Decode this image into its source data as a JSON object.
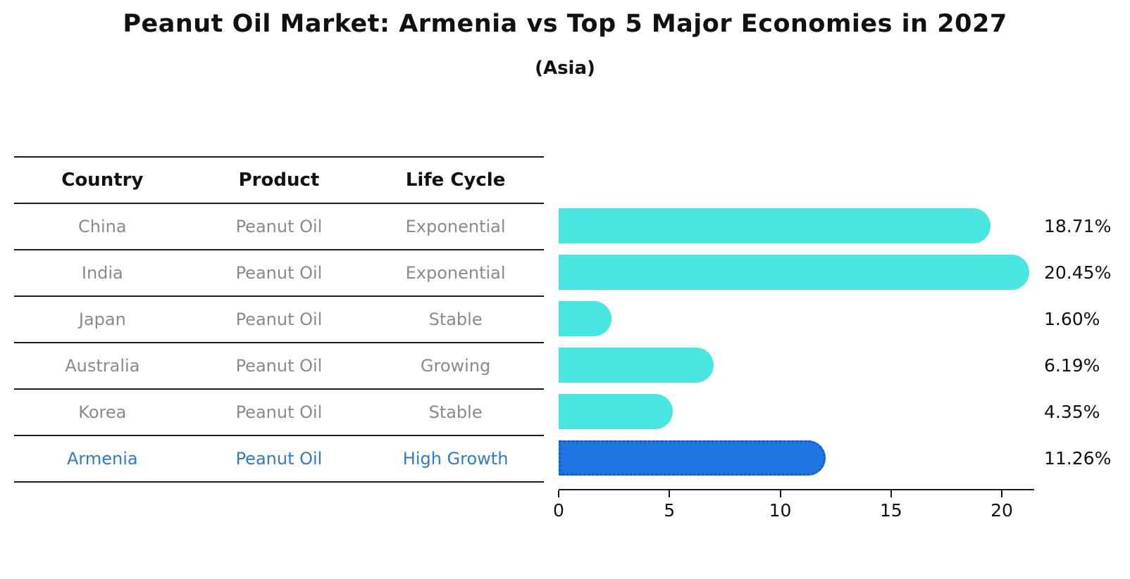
{
  "title": "Peanut Oil Market: Armenia vs Top 5 Major Economies in 2027",
  "subtitle": "(Asia)",
  "colors": {
    "bar_default": "#48e6e0",
    "bar_highlight": "#1e76e2",
    "bar_highlight_edge": "#0d5bc8",
    "highlight_text": "#2d7ad1",
    "row_text": "#8a8a8a",
    "line_color": "#1a1a1a"
  },
  "table": {
    "headers": [
      "Country",
      "Product",
      "Life Cycle"
    ],
    "rows": [
      {
        "country": "China",
        "product": "Peanut Oil",
        "life_cycle": "Exponential",
        "highlight": false
      },
      {
        "country": "India",
        "product": "Peanut Oil",
        "life_cycle": "Exponential",
        "highlight": false
      },
      {
        "country": "Japan",
        "product": "Peanut Oil",
        "life_cycle": "Stable",
        "highlight": false
      },
      {
        "country": "Australia",
        "product": "Peanut Oil",
        "life_cycle": "Growing",
        "highlight": false
      },
      {
        "country": "Korea",
        "product": "Peanut Oil",
        "life_cycle": "Stable",
        "highlight": false
      },
      {
        "country": "Armenia",
        "product": "Peanut Oil",
        "life_cycle": "High Growth",
        "highlight": true
      }
    ]
  },
  "chart_data": {
    "type": "bar",
    "orientation": "horizontal",
    "title": "Peanut Oil Market: Armenia vs Top 5 Major Economies in 2027",
    "subtitle": "(Asia)",
    "categories": [
      "China",
      "India",
      "Japan",
      "Australia",
      "Korea",
      "Armenia"
    ],
    "values": [
      18.71,
      20.45,
      1.6,
      6.19,
      4.35,
      11.26
    ],
    "value_labels": [
      "18.71%",
      "20.45%",
      "1.60%",
      "6.19%",
      "4.35%",
      "11.26%"
    ],
    "highlight_category": "Armenia",
    "xlabel": "",
    "ylabel": "",
    "x_ticks": [
      0,
      5,
      10,
      15,
      20
    ],
    "xlim": [
      0,
      21.5
    ],
    "grid": false,
    "legend": false
  }
}
